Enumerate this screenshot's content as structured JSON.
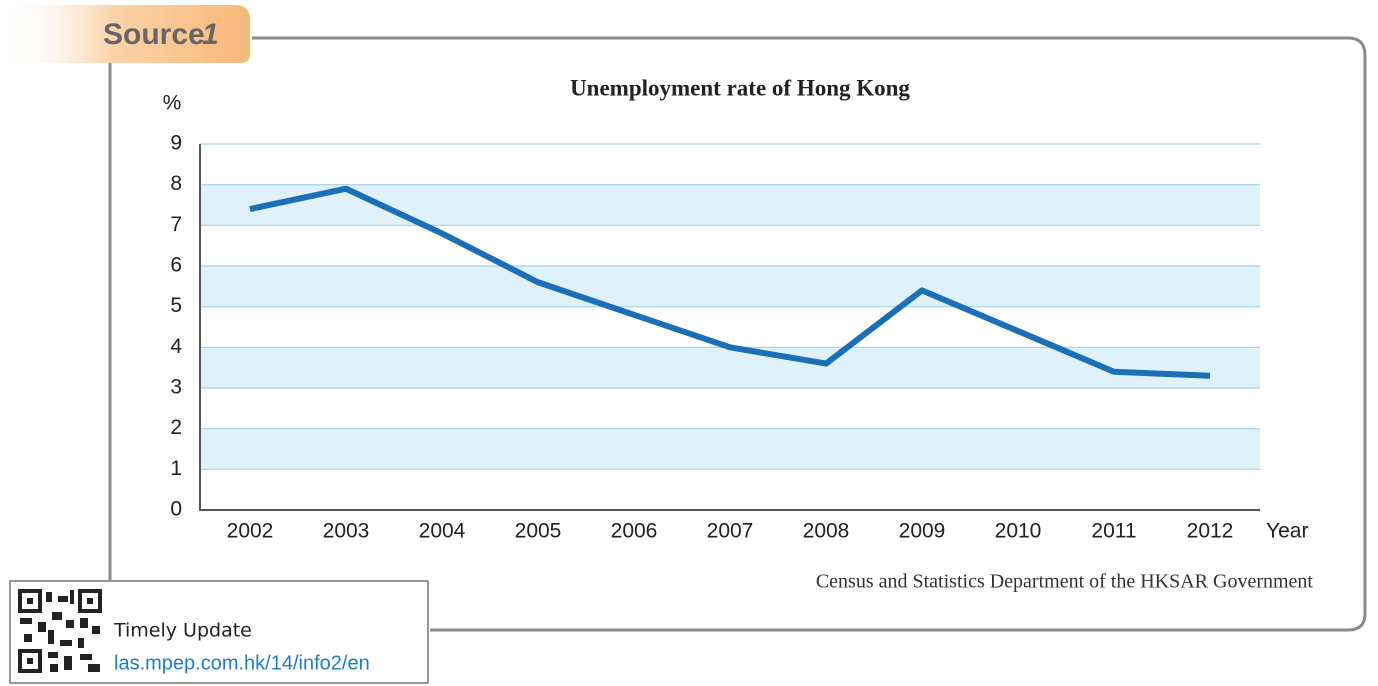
{
  "source_tab": {
    "word": "Source",
    "number": "1"
  },
  "chart_data": {
    "type": "line",
    "title": "Unemployment rate of Hong Kong",
    "y_label": "%",
    "x_label": "Year",
    "categories": [
      "2002",
      "2003",
      "2004",
      "2005",
      "2006",
      "2007",
      "2008",
      "2009",
      "2010",
      "2011",
      "2012"
    ],
    "series": [
      {
        "name": "Unemployment rate",
        "color": "#1a6fb8",
        "values": [
          7.4,
          7.9,
          6.8,
          5.6,
          4.8,
          4.0,
          3.6,
          5.4,
          4.4,
          3.4,
          3.3
        ]
      }
    ],
    "ylim": [
      0,
      9
    ],
    "yticks": [
      0,
      1,
      2,
      3,
      4,
      5,
      6,
      7,
      8,
      9
    ],
    "grid": true,
    "band_color": "#dff1fa",
    "source_note": "Census and Statistics Department of the HKSAR Government"
  },
  "update_box": {
    "title": "Timely Update",
    "link": "las.mpep.com.hk/14/info2/en"
  }
}
